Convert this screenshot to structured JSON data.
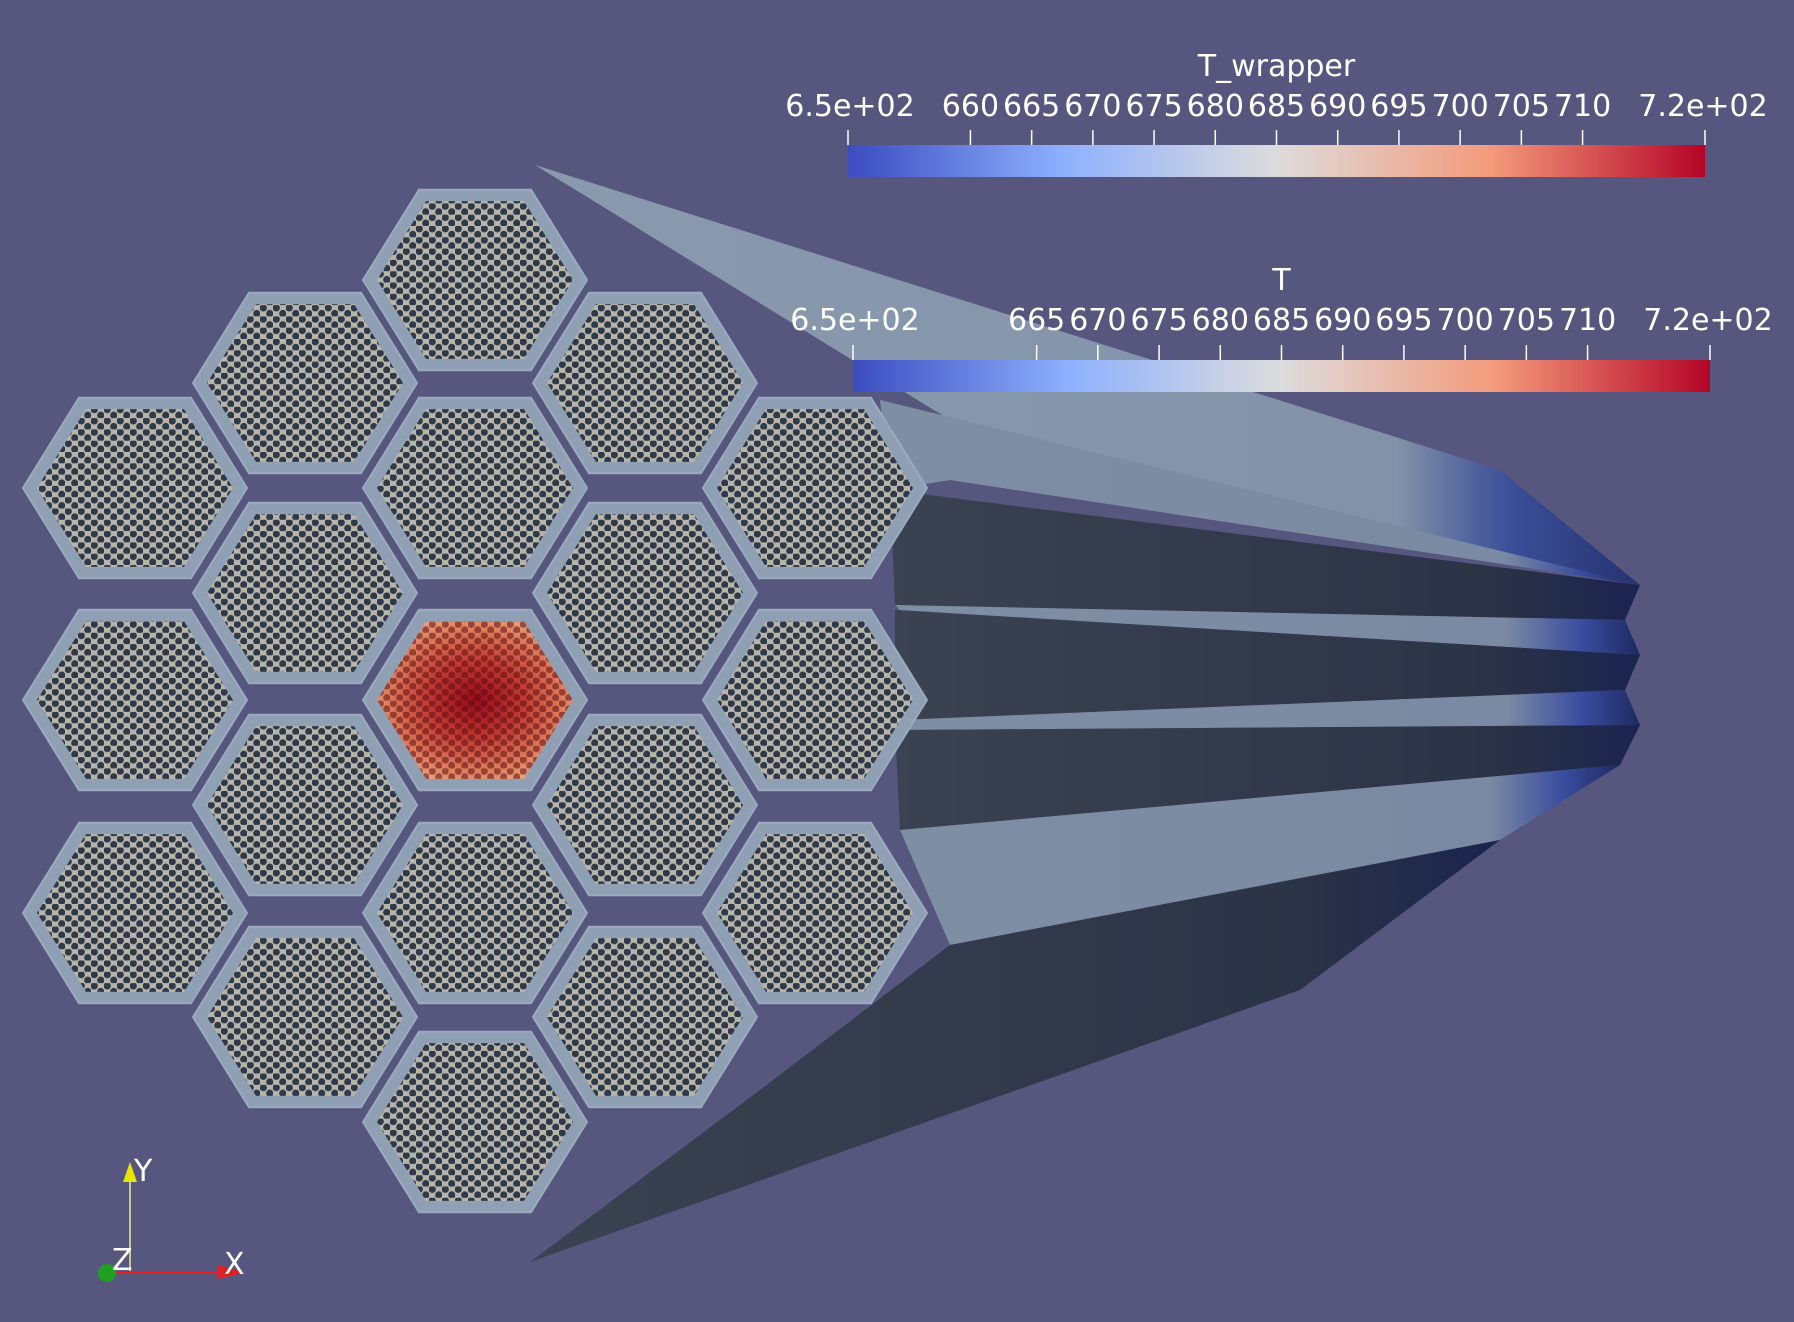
{
  "viewport": {
    "background": "#57567f"
  },
  "colorbars": [
    {
      "id": "t-wrapper",
      "title": "T_wrapper",
      "min_label": "6.5e+02",
      "max_label": "7.2e+02",
      "range": [
        650,
        720
      ],
      "ticks": [
        "660",
        "665",
        "670",
        "675",
        "680",
        "685",
        "690",
        "695",
        "700",
        "705",
        "710"
      ],
      "colormap": [
        "#3b4cc0",
        "#8db0fe",
        "#dddcdc",
        "#f49a7b",
        "#b40426"
      ]
    },
    {
      "id": "t",
      "title": "T",
      "min_label": "6.5e+02",
      "max_label": "7.2e+02",
      "range": [
        650,
        720
      ],
      "ticks": [
        "665",
        "670",
        "675",
        "680",
        "685",
        "690",
        "695",
        "700",
        "705",
        "710"
      ],
      "colormap": [
        "#3b4cc0",
        "#8db0fe",
        "#dddcdc",
        "#f49a7b",
        "#b40426"
      ]
    }
  ],
  "orientation_axes": {
    "x_label": "X",
    "y_label": "Y",
    "z_label": "Z",
    "x_color": "#e02020",
    "y_color": "#e6e600",
    "z_color": "#20a020"
  },
  "assembly": {
    "hot_assembly_index": 9,
    "wrapper_color": "#8fa0b5",
    "pin_color": "#2e3a4a"
  }
}
